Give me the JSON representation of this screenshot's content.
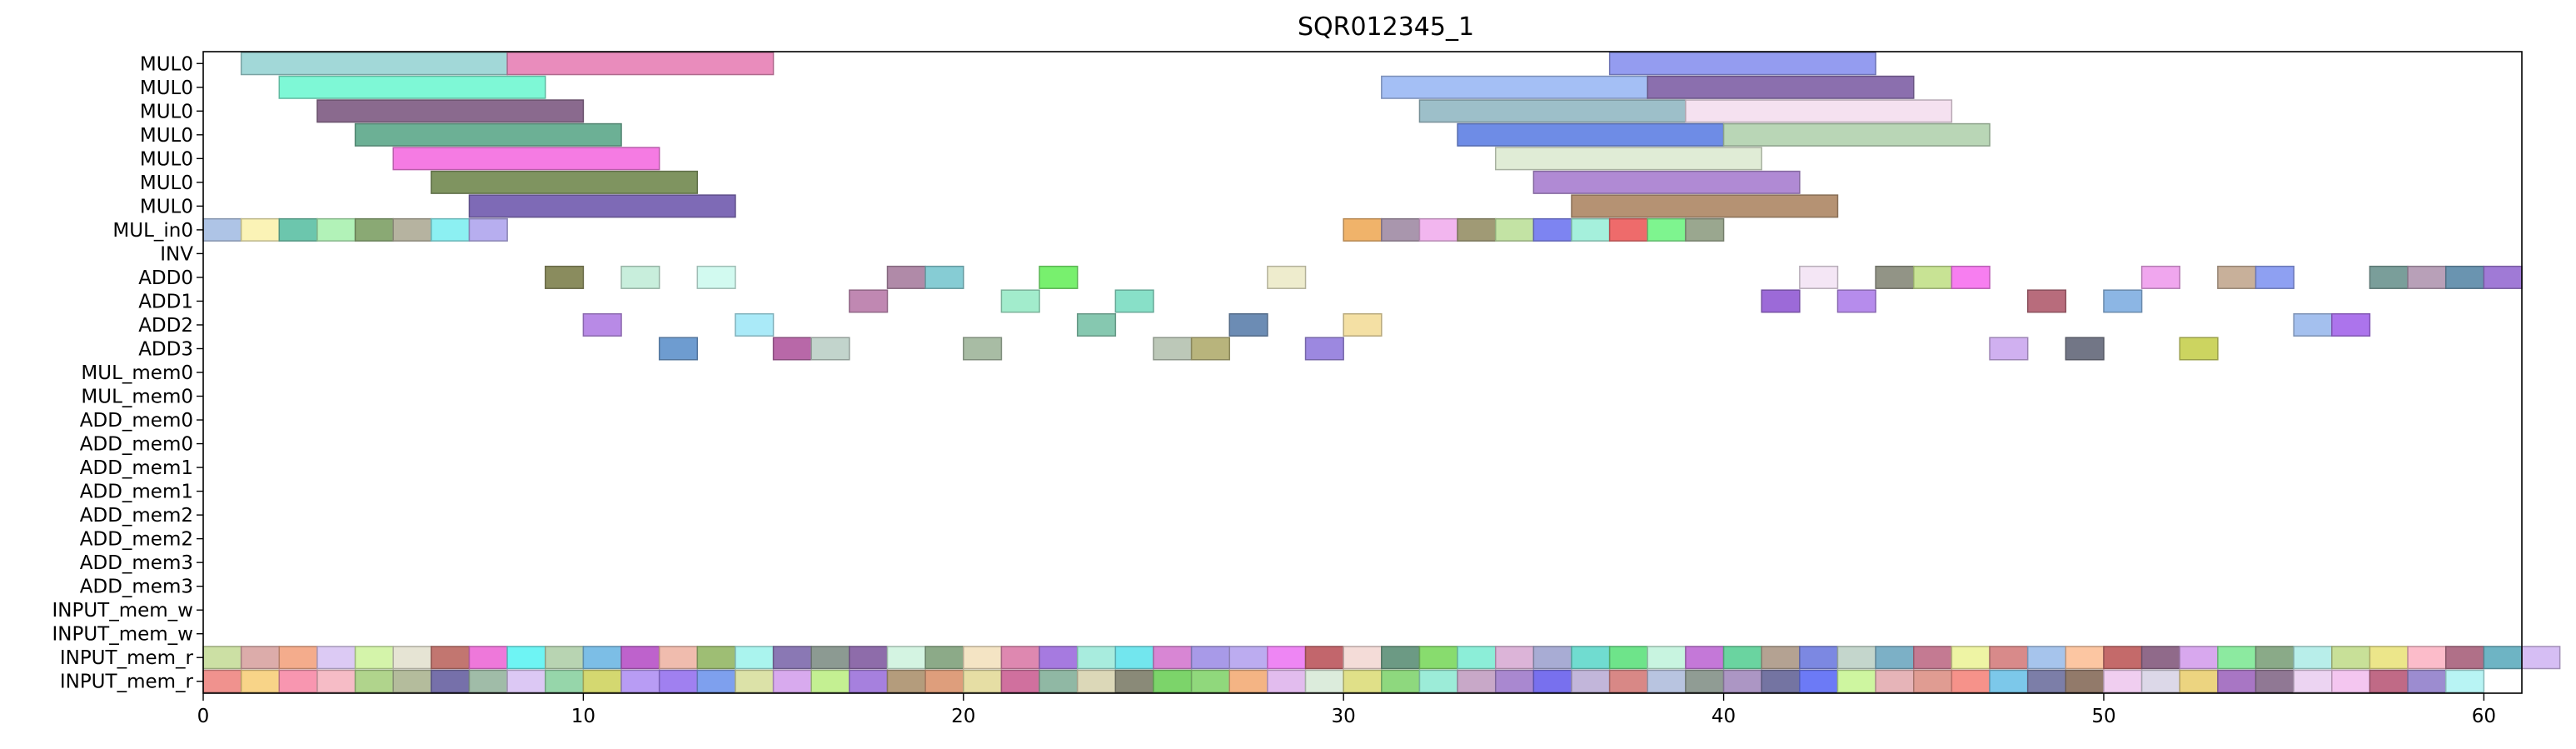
{
  "chart_data": {
    "type": "gantt",
    "title": "SQR012345_1",
    "xlabel": "",
    "ylabel": "",
    "xlim": [
      0,
      61
    ],
    "xticks": [
      0,
      10,
      20,
      30,
      40,
      50,
      60
    ],
    "grid": false,
    "rows": [
      "MUL0",
      "MUL0",
      "MUL0",
      "MUL0",
      "MUL0",
      "MUL0",
      "MUL0",
      "MUL_in0",
      "INV",
      "ADD0",
      "ADD1",
      "ADD2",
      "ADD3",
      "MUL_mem0",
      "MUL_mem0",
      "ADD_mem0",
      "ADD_mem0",
      "ADD_mem1",
      "ADD_mem1",
      "ADD_mem2",
      "ADD_mem2",
      "ADD_mem3",
      "ADD_mem3",
      "INPUT_mem_w",
      "INPUT_mem_w",
      "INPUT_mem_r",
      "INPUT_mem_r"
    ],
    "bars": [
      {
        "row": 0,
        "start": 1,
        "end": 8,
        "color": "#a2d8d8"
      },
      {
        "row": 0,
        "start": 8,
        "end": 15,
        "color": "#e98cbc"
      },
      {
        "row": 0,
        "start": 37,
        "end": 44,
        "color": "#949cf0"
      },
      {
        "row": 1,
        "start": 2,
        "end": 9,
        "color": "#7ef8d6"
      },
      {
        "row": 1,
        "start": 31,
        "end": 38,
        "color": "#a4bff5"
      },
      {
        "row": 1,
        "start": 38,
        "end": 45,
        "color": "#8b6fae"
      },
      {
        "row": 2,
        "start": 3,
        "end": 10,
        "color": "#8a6a8e"
      },
      {
        "row": 2,
        "start": 32,
        "end": 39,
        "color": "#9dbfc9"
      },
      {
        "row": 2,
        "start": 39,
        "end": 46,
        "color": "#f5e1f0"
      },
      {
        "row": 3,
        "start": 4,
        "end": 11,
        "color": "#6cb095"
      },
      {
        "row": 3,
        "start": 33,
        "end": 40,
        "color": "#6e8ce6"
      },
      {
        "row": 3,
        "start": 40,
        "end": 47,
        "color": "#b9d6b6"
      },
      {
        "row": 4,
        "start": 5,
        "end": 12,
        "color": "#f57be3"
      },
      {
        "row": 4,
        "start": 34,
        "end": 41,
        "color": "#e0ecd6"
      },
      {
        "row": 5,
        "start": 6,
        "end": 13,
        "color": "#7f9460"
      },
      {
        "row": 5,
        "start": 35,
        "end": 42,
        "color": "#b08ad4"
      },
      {
        "row": 6,
        "start": 7,
        "end": 14,
        "color": "#7e6ab6"
      },
      {
        "row": 6,
        "start": 36,
        "end": 43,
        "color": "#b59273"
      },
      {
        "row": 7,
        "start": 0,
        "end": 1,
        "color": "#aec4e6"
      },
      {
        "row": 7,
        "start": 1,
        "end": 2,
        "color": "#fbf3b6"
      },
      {
        "row": 7,
        "start": 2,
        "end": 3,
        "color": "#6cc6ad"
      },
      {
        "row": 7,
        "start": 3,
        "end": 4,
        "color": "#b2f2b8"
      },
      {
        "row": 7,
        "start": 4,
        "end": 5,
        "color": "#8aa974"
      },
      {
        "row": 7,
        "start": 5,
        "end": 6,
        "color": "#b6b3a0"
      },
      {
        "row": 7,
        "start": 6,
        "end": 7,
        "color": "#8cf0f2"
      },
      {
        "row": 7,
        "start": 7,
        "end": 8,
        "color": "#b7aeef"
      },
      {
        "row": 7,
        "start": 30,
        "end": 31,
        "color": "#f0b36a"
      },
      {
        "row": 7,
        "start": 31,
        "end": 32,
        "color": "#a996ad"
      },
      {
        "row": 7,
        "start": 32,
        "end": 33,
        "color": "#f2b6ef"
      },
      {
        "row": 7,
        "start": 33,
        "end": 34,
        "color": "#a09a75"
      },
      {
        "row": 7,
        "start": 34,
        "end": 35,
        "color": "#c3e3a4"
      },
      {
        "row": 7,
        "start": 35,
        "end": 36,
        "color": "#7d84f1"
      },
      {
        "row": 7,
        "start": 36,
        "end": 37,
        "color": "#a5f0dc"
      },
      {
        "row": 7,
        "start": 37,
        "end": 38,
        "color": "#ee6b6b"
      },
      {
        "row": 7,
        "start": 38,
        "end": 39,
        "color": "#7ef58f"
      },
      {
        "row": 7,
        "start": 39,
        "end": 40,
        "color": "#9aa78f"
      },
      {
        "row": 9,
        "start": 9,
        "end": 10,
        "color": "#8a8c5e"
      },
      {
        "row": 9,
        "start": 11,
        "end": 12,
        "color": "#c8eedc"
      },
      {
        "row": 9,
        "start": 13,
        "end": 14,
        "color": "#d2faf0"
      },
      {
        "row": 9,
        "start": 18,
        "end": 19,
        "color": "#b08aa8"
      },
      {
        "row": 9,
        "start": 19,
        "end": 20,
        "color": "#86ccd4"
      },
      {
        "row": 9,
        "start": 22,
        "end": 23,
        "color": "#78f06e"
      },
      {
        "row": 9,
        "start": 28,
        "end": 29,
        "color": "#eeeccd"
      },
      {
        "row": 9,
        "start": 42,
        "end": 43,
        "color": "#f4e6f5"
      },
      {
        "row": 9,
        "start": 44,
        "end": 45,
        "color": "#929486"
      },
      {
        "row": 9,
        "start": 45,
        "end": 46,
        "color": "#c8e394"
      },
      {
        "row": 9,
        "start": 46,
        "end": 47,
        "color": "#f77ef0"
      },
      {
        "row": 9,
        "start": 51,
        "end": 52,
        "color": "#f0a6ee"
      },
      {
        "row": 9,
        "start": 53,
        "end": 54,
        "color": "#c8b09a"
      },
      {
        "row": 9,
        "start": 54,
        "end": 55,
        "color": "#8ea0f2"
      },
      {
        "row": 9,
        "start": 57,
        "end": 58,
        "color": "#7a9e9a"
      },
      {
        "row": 9,
        "start": 58,
        "end": 59,
        "color": "#b8a0b8"
      },
      {
        "row": 9,
        "start": 59,
        "end": 60,
        "color": "#6a94b0"
      },
      {
        "row": 9,
        "start": 60,
        "end": 61,
        "color": "#a07ad6"
      },
      {
        "row": 10,
        "start": 17,
        "end": 18,
        "color": "#c088b2"
      },
      {
        "row": 10,
        "start": 21,
        "end": 22,
        "color": "#a2eccc"
      },
      {
        "row": 10,
        "start": 24,
        "end": 25,
        "color": "#88e0c8"
      },
      {
        "row": 10,
        "start": 41,
        "end": 42,
        "color": "#9c6ad8"
      },
      {
        "row": 10,
        "start": 43,
        "end": 44,
        "color": "#b68cec"
      },
      {
        "row": 10,
        "start": 48,
        "end": 49,
        "color": "#b86c7c"
      },
      {
        "row": 10,
        "start": 50,
        "end": 51,
        "color": "#8cb6e4"
      },
      {
        "row": 11,
        "start": 10,
        "end": 11,
        "color": "#b88ae6"
      },
      {
        "row": 11,
        "start": 14,
        "end": 15,
        "color": "#aaeaf8"
      },
      {
        "row": 11,
        "start": 23,
        "end": 24,
        "color": "#86c8b0"
      },
      {
        "row": 11,
        "start": 27,
        "end": 28,
        "color": "#6c8cb4"
      },
      {
        "row": 11,
        "start": 30,
        "end": 31,
        "color": "#f4e0a4"
      },
      {
        "row": 11,
        "start": 55,
        "end": 56,
        "color": "#a4c0ee"
      },
      {
        "row": 11,
        "start": 56,
        "end": 57,
        "color": "#ac74ec"
      },
      {
        "row": 12,
        "start": 12,
        "end": 13,
        "color": "#6e9cd0"
      },
      {
        "row": 12,
        "start": 15,
        "end": 16,
        "color": "#b868a8"
      },
      {
        "row": 12,
        "start": 16,
        "end": 17,
        "color": "#c2d4cc"
      },
      {
        "row": 12,
        "start": 20,
        "end": 21,
        "color": "#a8bca4"
      },
      {
        "row": 12,
        "start": 25,
        "end": 26,
        "color": "#bcc8b8"
      },
      {
        "row": 12,
        "start": 26,
        "end": 27,
        "color": "#b8b47c"
      },
      {
        "row": 12,
        "start": 29,
        "end": 30,
        "color": "#9c88e0"
      },
      {
        "row": 12,
        "start": 47,
        "end": 48,
        "color": "#d0b0f0"
      },
      {
        "row": 12,
        "start": 49,
        "end": 50,
        "color": "#727686"
      },
      {
        "row": 12,
        "start": 52,
        "end": 53,
        "color": "#ccd460"
      }
    ],
    "input_mem_rows": [
      {
        "row": 25,
        "colors": [
          "#cce0a4",
          "#dcacaa",
          "#f4ac8c",
          "#dccaf4",
          "#d4f4aa",
          "#e6e4d4",
          "#c27670",
          "#ee78da",
          "#6ef4f4",
          "#b8d4b2",
          "#7cbee6",
          "#be62cc",
          "#f0bcae",
          "#9ebe74",
          "#aaf4ee",
          "#8a78b4",
          "#8c9a92",
          "#8e6caa",
          "#d4f4e2",
          "#8caa88",
          "#f4e4c4",
          "#de88b0",
          "#a67ae0",
          "#a8ecde",
          "#72e6ee",
          "#d886d4",
          "#a89ae8",
          "#bcacf0",
          "#ee86f4",
          "#c2666c",
          "#f4dcd8",
          "#6c9a84",
          "#88dc6e",
          "#8ceed8",
          "#dcb4d8",
          "#a8acd4",
          "#70dcd0",
          "#6ee48a",
          "#c8f4e0",
          "#c478d8",
          "#6ad4a0",
          "#b4a292",
          "#7c88e2",
          "#c4d6cc",
          "#7cb0c6",
          "#c47a92",
          "#eef4a4",
          "#d88a8a",
          "#a6c4ec",
          "#fcc6a2",
          "#c46a6a",
          "#906a8a",
          "#d8a8ee",
          "#8ceaa0",
          "#8aaa88",
          "#b8eeea",
          "#c8e098",
          "#ece68a",
          "#fcbcca",
          "#b07088",
          "#6eb4c4",
          "#d6bef4"
        ]
      },
      {
        "row": 26,
        "colors": [
          "#f0928e",
          "#f8d488",
          "#f896b0",
          "#f6bcc6",
          "#b0d48c",
          "#b4bc9c",
          "#7670aa",
          "#a0bca8",
          "#dcc8f4",
          "#96d6aa",
          "#d4d870",
          "#b89cf4",
          "#a080f0",
          "#7ea0ee",
          "#dce2a8",
          "#d8aaee",
          "#c4f092",
          "#a680de",
          "#b49c7c",
          "#de9e7c",
          "#e6dea4",
          "#d0709e",
          "#90b8a4",
          "#dcd8b8",
          "#8a8a78",
          "#7cd46a",
          "#90d87c",
          "#f4b484",
          "#e2bcee",
          "#dcecdc",
          "#e0e088",
          "#8ed87e",
          "#9cecd8",
          "#c8a8c8",
          "#a988d0",
          "#7870ee",
          "#c2b6da",
          "#d88886",
          "#b8c4e0",
          "#909c94",
          "#ac96c4",
          "#7474a2",
          "#6c7af6",
          "#cef6a0",
          "#e6b4b8",
          "#e09c92",
          "#f6928a",
          "#7cc8ea",
          "#7c7ea8",
          "#927a6a",
          "#f0cef0",
          "#dcd8e8",
          "#ecd480",
          "#a876c4",
          "#907894",
          "#ecd4f2",
          "#f4c6f0",
          "#c06a86",
          "#9c8cd0",
          "#b8f4f4"
        ]
      }
    ]
  }
}
